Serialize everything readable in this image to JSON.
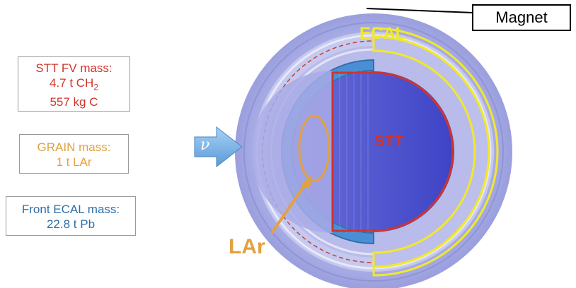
{
  "stt_box": {
    "line1": "STT FV mass:",
    "line2_prefix": "4.7 t CH",
    "line2_sub": "2",
    "line3": "557 kg C"
  },
  "grain_box": {
    "line1": "GRAIN mass:",
    "line2": "1 t LAr"
  },
  "ecal_box": {
    "line1": "Front ECAL mass:",
    "line2": "22.8 t Pb"
  },
  "magnet_label": "Magnet",
  "ecal_label": "ECAL",
  "stt_label": "STT",
  "lar_label": "LAr",
  "neutrino_symbol": "ν",
  "colors": {
    "stt": "#d0342c",
    "grain": "#e3a140",
    "ecal_text": "#2f6fa8",
    "ecal_outline": "#f2e82a",
    "magnet_ring": "#a9aee6",
    "stt_fill": "#4a4fcf",
    "front_ecal": "#4a8fd6"
  }
}
